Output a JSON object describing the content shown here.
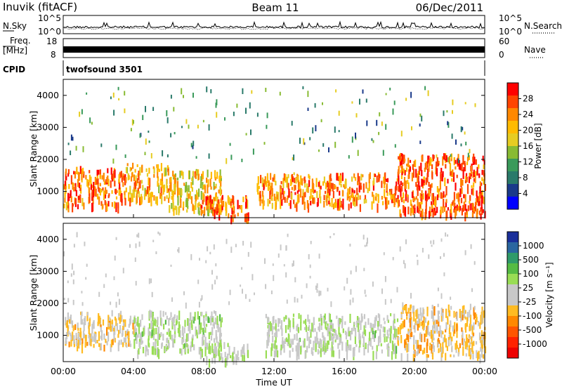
{
  "header": {
    "station": "Inuvik (fitACF)",
    "beam": "Beam 11",
    "date": "06/Dec/2011"
  },
  "top_panels": {
    "nsky_label": "N.Sky",
    "nsky_left_ticks": [
      "10^5",
      "10^0"
    ],
    "nsearch_label": "N.Search",
    "nsearch_right_ticks": [
      "10^5",
      "10^0"
    ],
    "freq_label": "Freq.",
    "freq_unit": "[MHz]",
    "freq_ticks": [
      "18",
      "8"
    ],
    "nave_label": "Nave",
    "nave_ticks": [
      "60",
      "0"
    ],
    "cpid_label": "CPID",
    "cpid_value": "twofsound 3501"
  },
  "axes": {
    "ylabel": "Slant Range [km]",
    "y_ticks": [
      "4000",
      "3000",
      "2000",
      "1000"
    ],
    "xlabel": "Time UT",
    "x_ticks": [
      "00:00",
      "04:00",
      "08:00",
      "12:00",
      "16:00",
      "20:00",
      "00:00"
    ]
  },
  "colorbars": {
    "power": {
      "label": "Power [dB]",
      "ticks": [
        "28",
        "24",
        "20",
        "16",
        "12",
        "8",
        "4"
      ],
      "colors": [
        "#ff0000",
        "#ff4400",
        "#ff8800",
        "#ffbb00",
        "#e6cc22",
        "#88bb33",
        "#3a9a5a",
        "#2a7a6a",
        "#1a3a8a",
        "#0000ff"
      ]
    },
    "velocity": {
      "label": "Velocity [m s⁻¹]",
      "ticks": [
        "1000",
        "500",
        "100",
        "25",
        "-25",
        "-100",
        "-500",
        "-1000"
      ],
      "colors": [
        "#1a2f9a",
        "#2a66a0",
        "#2f9a6a",
        "#55bb44",
        "#99dd55",
        "#c8c8c8",
        "#c8c8c8",
        "#ffbb22",
        "#ff8800",
        "#ff5500",
        "#ff2200",
        "#ee0000"
      ]
    }
  },
  "chart_data": [
    {
      "type": "heatmap",
      "name": "Power",
      "x_range_hours": [
        0,
        24
      ],
      "y_range_km": [
        180,
        4500
      ],
      "colorbar_range_db": [
        0,
        32
      ],
      "coverage": [
        {
          "t0": 0.0,
          "t1": 3.5,
          "r0": 600,
          "r1": 1800,
          "level_db": 26
        },
        {
          "t0": 3.5,
          "t1": 6.0,
          "r0": 800,
          "r1": 1900,
          "level_db": 22
        },
        {
          "t0": 6.0,
          "t1": 9.0,
          "r0": 400,
          "r1": 1700,
          "level_db": 20
        },
        {
          "t0": 7.8,
          "t1": 10.5,
          "r0": 250,
          "r1": 900,
          "level_db": 26
        },
        {
          "t0": 11.0,
          "t1": 19.0,
          "r0": 600,
          "r1": 1600,
          "level_db": 25
        },
        {
          "t0": 19.0,
          "t1": 24.0,
          "r0": 300,
          "r1": 2200,
          "level_db": 28
        }
      ]
    },
    {
      "type": "heatmap",
      "name": "Velocity",
      "x_range_hours": [
        0,
        24
      ],
      "y_range_km": [
        180,
        4500
      ],
      "colorbar_range_ms": [
        -1000,
        1000
      ],
      "coverage": [
        {
          "t0": 0.0,
          "t1": 4.0,
          "r0": 700,
          "r1": 1800,
          "velocity_ms": -150
        },
        {
          "t0": 4.0,
          "t1": 9.0,
          "r0": 500,
          "r1": 1800,
          "velocity_ms": 150
        },
        {
          "t0": 8.0,
          "t1": 10.5,
          "r0": 250,
          "r1": 800,
          "velocity_ms": 100
        },
        {
          "t0": 11.5,
          "t1": 19.0,
          "r0": 500,
          "r1": 1700,
          "velocity_ms": 120
        },
        {
          "t0": 19.0,
          "t1": 24.0,
          "r0": 400,
          "r1": 2000,
          "velocity_ms": -200
        }
      ]
    }
  ]
}
